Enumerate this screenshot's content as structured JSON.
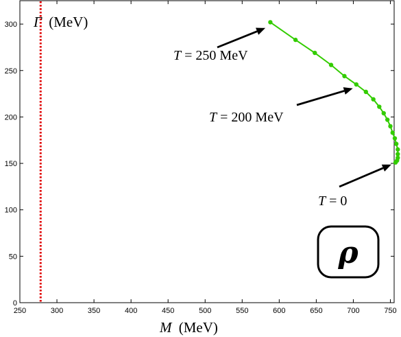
{
  "chart_data": {
    "type": "line",
    "xlabel_var": "M",
    "xlabel_unit": "(MeV)",
    "ylabel_var": "Γ",
    "ylabel_unit": "(MeV)",
    "xlim": [
      250,
      760
    ],
    "ylim": [
      0,
      310
    ],
    "x_ticks": [
      250,
      300,
      350,
      400,
      450,
      500,
      550,
      600,
      650,
      700,
      750
    ],
    "y_ticks": [
      0,
      50,
      100,
      150,
      200,
      250,
      300
    ],
    "grid": false,
    "series": [
      {
        "color": "#33cc00",
        "marker": "circle",
        "x": [
          757,
          759,
          760,
          760,
          760,
          758,
          756,
          753,
          750,
          746,
          741,
          735,
          727,
          717,
          704,
          688,
          670,
          648,
          622,
          588
        ],
        "y": [
          151,
          153,
          156,
          160,
          165,
          171,
          177,
          183,
          190,
          197,
          204,
          211,
          219,
          227,
          235,
          244,
          256,
          269,
          283,
          302
        ]
      }
    ],
    "reference_line": {
      "orientation": "vertical",
      "x": 278,
      "color": "#e00000",
      "style": "dotted"
    },
    "annotations": [
      {
        "text_var": "T",
        "text_rest": " = 250 MeV",
        "target": [
          585,
          298
        ]
      },
      {
        "text_var": "T",
        "text_rest": " = 200 MeV",
        "target": [
          703,
          233
        ]
      },
      {
        "text_var": "T",
        "text_rest": " = 0",
        "target": [
          755,
          151
        ]
      }
    ],
    "badge": {
      "symbol": "ρ"
    }
  }
}
